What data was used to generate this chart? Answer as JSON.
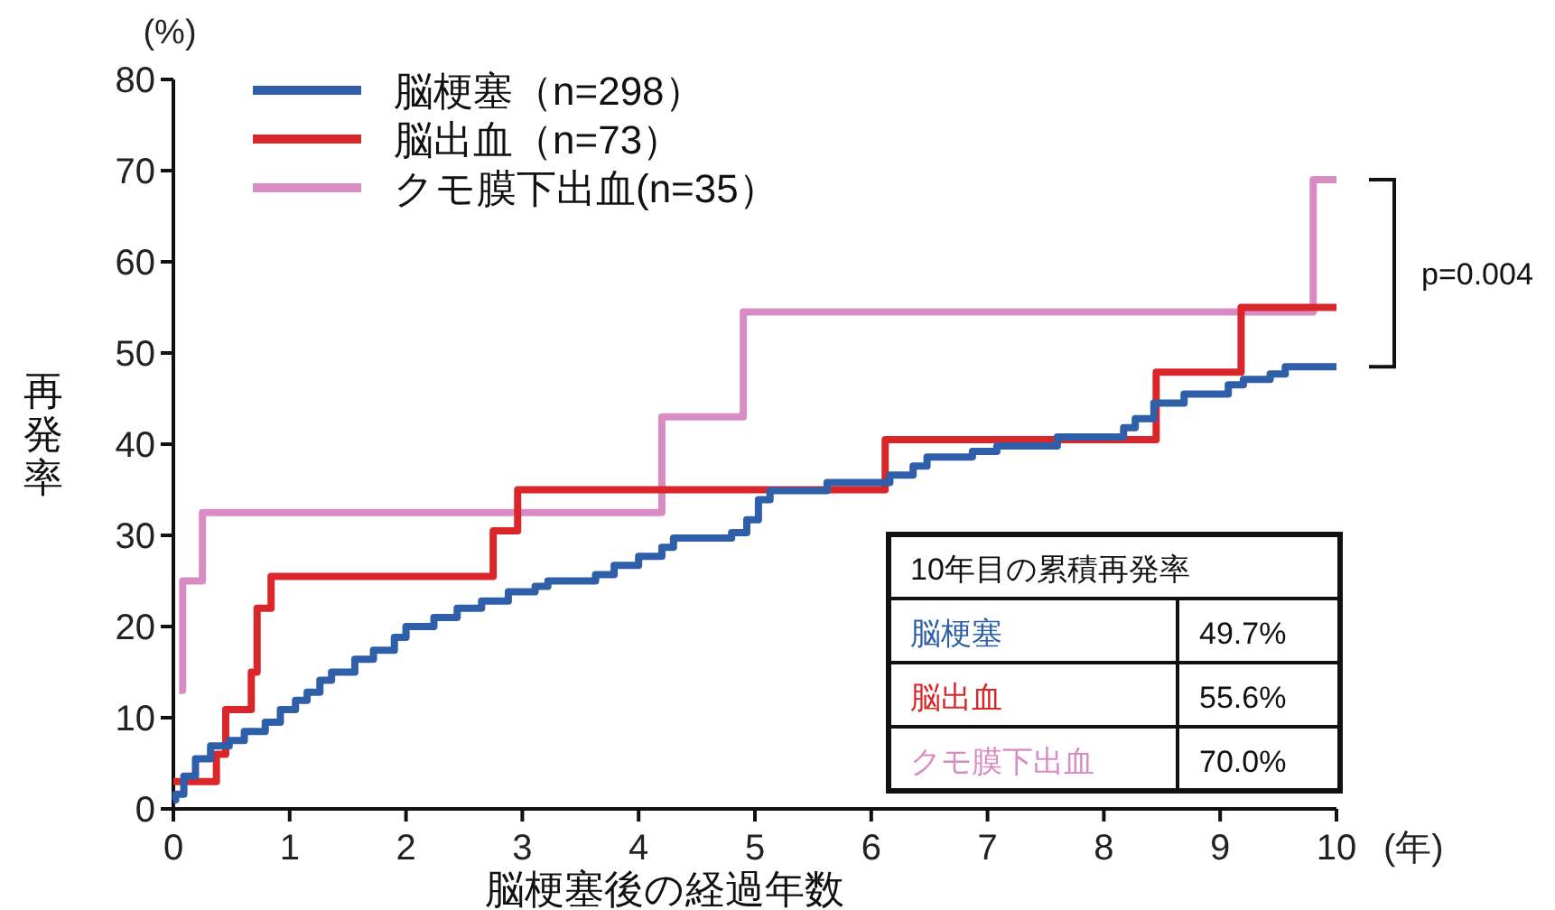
{
  "chart_data": {
    "type": "step",
    "xlabel": "脳梗塞後の経過年数",
    "ylabel": "再発率",
    "xlim": [
      0,
      10
    ],
    "xticks": [
      0,
      1,
      2,
      3,
      4,
      5,
      6,
      7,
      8,
      9,
      10
    ],
    "ylim": [
      0,
      80
    ],
    "yticks": [
      0,
      10,
      20,
      30,
      40,
      50,
      60,
      70,
      80
    ],
    "grid": false,
    "legend": "top left",
    "line_style": "solid",
    "marker": "none",
    "series": [
      {
        "name": "脳梗塞（n=298）",
        "color": "#2e5fa8",
        "x": [
          0,
          0.02,
          0.09,
          0.19,
          0.32,
          0.48,
          0.61,
          0.79,
          0.92,
          1.05,
          1.15,
          1.26,
          1.36,
          1.56,
          1.72,
          1.9,
          2.0,
          2.24,
          2.44,
          2.65,
          2.88,
          3.11,
          3.22,
          3.63,
          3.79,
          4.0,
          4.2,
          4.3,
          4.8,
          4.93,
          5.03,
          5.13,
          5.62,
          6.16,
          6.36,
          6.48,
          6.87,
          7.08,
          7.6,
          8.17,
          8.27,
          8.43,
          8.69,
          9.07,
          9.2,
          9.43,
          9.56,
          10
        ],
        "values": [
          1,
          1.6,
          3.6,
          5.5,
          6.9,
          7.5,
          8.5,
          9.5,
          10.9,
          11.9,
          12.8,
          14.1,
          15,
          16.4,
          17.4,
          18.8,
          20,
          21,
          22,
          22.8,
          23.8,
          24.4,
          25,
          25.7,
          26.7,
          27.7,
          28.7,
          29.7,
          30.3,
          31.7,
          33.9,
          34.9,
          35.8,
          36.6,
          37.6,
          38.6,
          39.2,
          39.8,
          40.8,
          41.8,
          42.8,
          44.5,
          45.5,
          46.5,
          47.1,
          47.7,
          48.5,
          48.5
        ]
      },
      {
        "name": "脳出血（n=73）",
        "color": "#d9262a",
        "x": [
          0,
          0.37,
          0.45,
          0.67,
          0.72,
          0.84,
          2.75,
          2.96,
          6.12,
          8.45,
          9.18,
          10
        ],
        "values": [
          3,
          6,
          10.9,
          15,
          22,
          25.5,
          30.5,
          35,
          40.5,
          47.9,
          55,
          55
        ]
      },
      {
        "name": "クモ膜下出血(n=35）",
        "color": "#d98cc4",
        "x": [
          0.05,
          0.08,
          0.25,
          4.2,
          4.9,
          9.8,
          10
        ],
        "values": [
          13,
          25,
          32.5,
          43,
          54.5,
          69,
          69
        ]
      }
    ],
    "annotations": [
      "(%)",
      "(年)",
      "p=0.004",
      "10年目の累積再発率",
      "脳梗塞",
      "49.7%",
      "脳出血",
      "55.6%",
      "クモ膜下出血",
      "70.0%"
    ]
  }
}
